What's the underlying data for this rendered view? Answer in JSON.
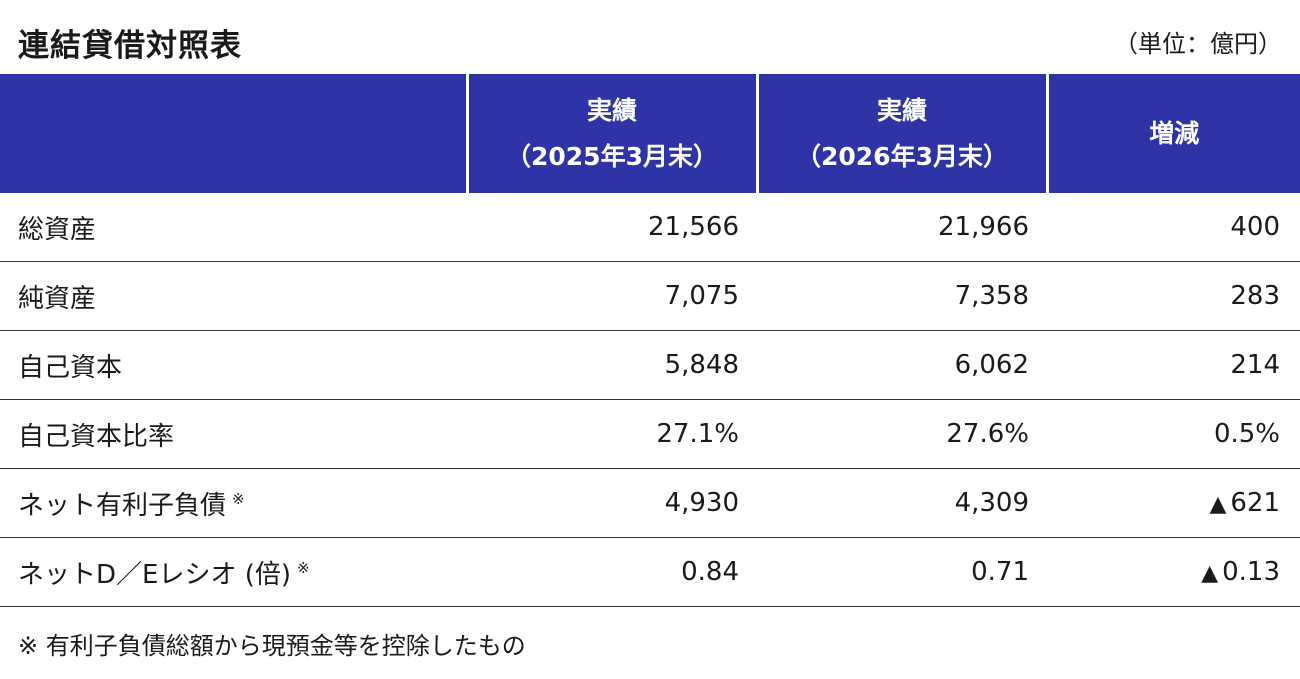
{
  "title": "連結貸借対照表",
  "unit": "（単位：億円）",
  "header": {
    "col1_line1": "実績",
    "col1_line2": "（2025年3月末）",
    "col2_line1": "実績",
    "col2_line2": "（2026年3月末）",
    "col3": "増減"
  },
  "rows": [
    {
      "label": "総資産",
      "note": "",
      "v2025": "21,566",
      "v2026": "21,966",
      "change_mark": "",
      "change": "400"
    },
    {
      "label": "純資産",
      "note": "",
      "v2025": "7,075",
      "v2026": "7,358",
      "change_mark": "",
      "change": "283"
    },
    {
      "label": "自己資本",
      "note": "",
      "v2025": "5,848",
      "v2026": "6,062",
      "change_mark": "",
      "change": "214"
    },
    {
      "label": "自己資本比率",
      "note": "",
      "v2025": "27.1%",
      "v2026": "27.6%",
      "change_mark": "",
      "change": "0.5%"
    },
    {
      "label": "ネット有利子負債",
      "note": "※",
      "v2025": "4,930",
      "v2026": "4,309",
      "change_mark": "▲",
      "change": "621"
    },
    {
      "label": "ネットD／Eレシオ (倍)",
      "note": "※",
      "v2025": "0.84",
      "v2026": "0.71",
      "change_mark": "▲",
      "change": "0.13"
    }
  ],
  "footnote": "※  有利子負債総額から現預金等を控除したもの"
}
